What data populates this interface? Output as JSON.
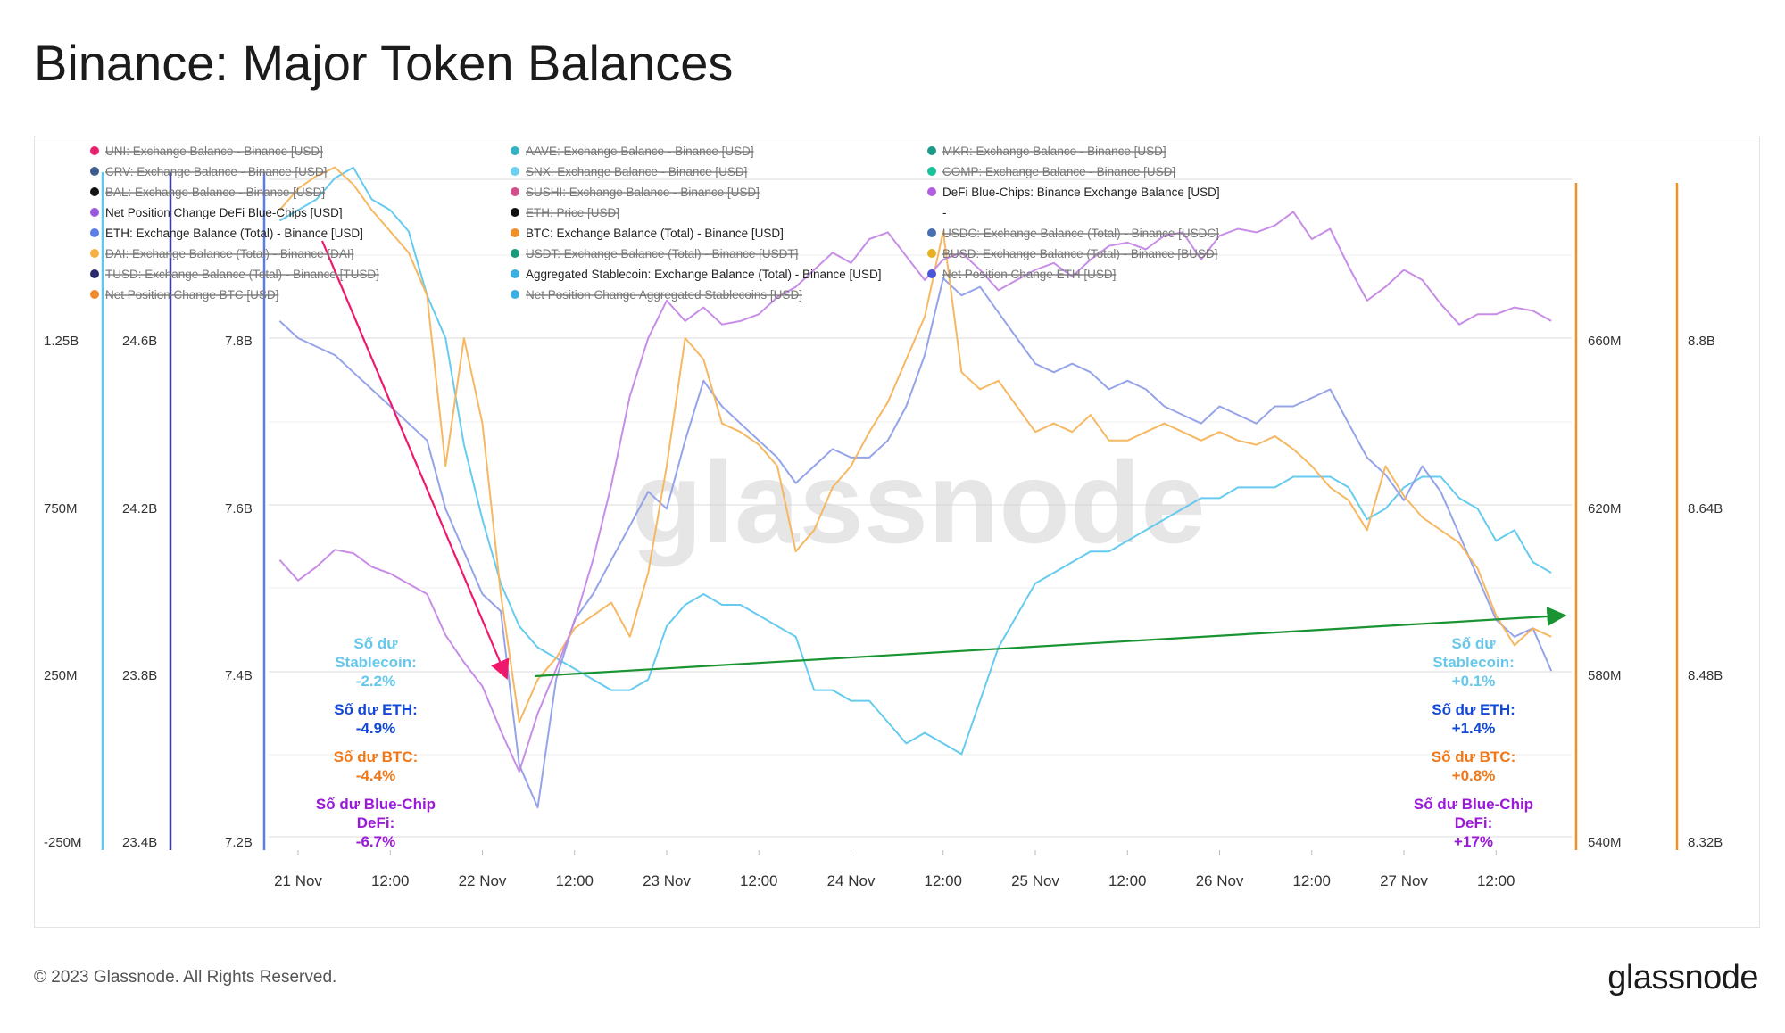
{
  "title": "Binance: Major Token Balances",
  "footer": "© 2023 Glassnode. All Rights Reserved.",
  "brand": "glassnode",
  "watermark": "glassnode",
  "colors": {
    "stable": "#5ec8ee",
    "eth": "#8f9fe8",
    "btc": "#f5b45a",
    "defi": "#c487e6",
    "red_arrow": "#f0186b",
    "green_arrow": "#1a9432",
    "ann_stable": "#67c8ec",
    "ann_eth": "#1248d8",
    "ann_btc": "#f07818",
    "ann_defi": "#9b1ad8"
  },
  "legend": [
    {
      "label": "UNI: Exchange Balance - Binance [USD]",
      "color": "#e8206e",
      "struck": true
    },
    {
      "label": "AAVE: Exchange Balance - Binance [USD]",
      "color": "#36b3c1",
      "struck": true
    },
    {
      "label": "MKR: Exchange Balance - Binance [USD]",
      "color": "#1c9a8a",
      "struck": true
    },
    {
      "label": "CRV: Exchange Balance - Binance [USD]",
      "color": "#3b5b8c",
      "struck": true
    },
    {
      "label": "SNX: Exchange Balance - Binance [USD]",
      "color": "#6ed0f0",
      "struck": true
    },
    {
      "label": "COMP: Exchange Balance - Binance [USD]",
      "color": "#19c39a",
      "struck": true
    },
    {
      "label": "BAL: Exchange Balance - Binance [USD]",
      "color": "#111111",
      "struck": true
    },
    {
      "label": "SUSHI: Exchange Balance - Binance [USD]",
      "color": "#d1508a",
      "struck": true
    },
    {
      "label": "DeFi Blue-Chips: Binance Exchange Balance [USD]",
      "color": "#b25ce0",
      "struck": false
    },
    {
      "label": "Net Position Change DeFi Blue-Chips [USD]",
      "color": "#9b59e0",
      "struck": false
    },
    {
      "label": "ETH: Price [USD]",
      "color": "#111111",
      "struck": true
    },
    {
      "label": "-",
      "color": "",
      "struck": false
    },
    {
      "label": "ETH: Exchange Balance (Total) - Binance [USD]",
      "color": "#5b7de8",
      "struck": false
    },
    {
      "label": "BTC: Exchange Balance (Total) - Binance [USD]",
      "color": "#f0902a",
      "struck": false
    },
    {
      "label": "USDC: Exchange Balance (Total) - Binance [USDC]",
      "color": "#4a6fb0",
      "struck": true
    },
    {
      "label": "DAI: Exchange Balance (Total) - Binance [DAI]",
      "color": "#f5b041",
      "struck": true
    },
    {
      "label": "USDT: Exchange Balance (Total) - Binance [USDT]",
      "color": "#1a9a7a",
      "struck": true
    },
    {
      "label": "BUSD: Exchange Balance (Total) - Binance [BUSD]",
      "color": "#e6b020",
      "struck": true
    },
    {
      "label": "TUSD: Exchange Balance (Total) - Binance [TUSD]",
      "color": "#2a2a6e",
      "struck": true
    },
    {
      "label": "Aggregated Stablecoin: Exchange Balance (Total) - Binance [USD]",
      "color": "#3bb0e0",
      "struck": false
    },
    {
      "label": "Net Position Change ETH [USD]",
      "color": "#4a55d8",
      "struck": true
    },
    {
      "label": "Net Position Change BTC [USD]",
      "color": "#f08a2a",
      "struck": true
    },
    {
      "label": "Net Position Change Aggregated Stablecoins [USD]",
      "color": "#3bb0e0",
      "struck": true
    }
  ],
  "annotations": {
    "left": [
      {
        "lines": [
          "Số dư",
          "Stablecoin:",
          "-2.2%"
        ],
        "key": "ann_stable"
      },
      {
        "lines": [
          "Số dư ETH:",
          "-4.9%"
        ],
        "key": "ann_eth"
      },
      {
        "lines": [
          "Số dư BTC:",
          "-4.4%"
        ],
        "key": "ann_btc"
      },
      {
        "lines": [
          "Số dư Blue-Chip",
          "DeFi:",
          "-6.7%"
        ],
        "key": "ann_defi"
      }
    ],
    "right": [
      {
        "lines": [
          "Số dư",
          "Stablecoin:",
          "+0.1%"
        ],
        "key": "ann_stable"
      },
      {
        "lines": [
          "Số dư ETH:",
          "+1.4%"
        ],
        "key": "ann_eth"
      },
      {
        "lines": [
          "Số dư BTC:",
          "+0.8%"
        ],
        "key": "ann_btc"
      },
      {
        "lines": [
          "Số dư Blue-Chip",
          "DeFi:",
          "+17%"
        ],
        "key": "ann_defi"
      }
    ]
  },
  "chart_data": {
    "type": "line",
    "title": "Binance: Major Token Balances",
    "x_ticks": [
      "21 Nov",
      "12:00",
      "22 Nov",
      "12:00",
      "23 Nov",
      "12:00",
      "24 Nov",
      "12:00",
      "25 Nov",
      "12:00",
      "26 Nov",
      "12:00",
      "27 Nov",
      "12:00"
    ],
    "x_range_days": [
      0,
      6.8
    ],
    "axes": {
      "defi": {
        "ticks": [
          "-250M",
          "250M",
          "750M",
          "1.25B"
        ],
        "range": [
          -250,
          1250
        ],
        "unit": "M USD"
      },
      "btc": {
        "ticks": [
          "23.4B",
          "23.8B",
          "24.2B",
          "24.6B"
        ],
        "range": [
          23.4,
          24.6
        ],
        "unit": "B USD"
      },
      "eth": {
        "ticks": [
          "7.2B",
          "7.4B",
          "7.6B",
          "7.8B"
        ],
        "range": [
          7.2,
          7.8
        ],
        "unit": "B USD"
      },
      "stable_r1": {
        "ticks": [
          "540M",
          "580M",
          "620M",
          "660M"
        ],
        "range": [
          540,
          660
        ],
        "unit": "M USD"
      },
      "stable_r2": {
        "ticks": [
          "8.32B",
          "8.48B",
          "8.64B",
          "8.8B"
        ],
        "range": [
          8.32,
          8.8
        ],
        "unit": "B USD"
      }
    },
    "series": [
      {
        "key": "stable",
        "axis": "stable_r2",
        "x": [
          -0.1,
          0.0,
          0.1,
          0.2,
          0.3,
          0.4,
          0.5,
          0.6,
          0.7,
          0.8,
          0.9,
          1.0,
          1.1,
          1.2,
          1.3,
          1.4,
          1.5,
          1.6,
          1.7,
          1.8,
          1.9,
          2.0,
          2.1,
          2.2,
          2.3,
          2.4,
          2.5,
          2.6,
          2.7,
          2.8,
          2.9,
          3.0,
          3.1,
          3.2,
          3.3,
          3.4,
          3.5,
          3.6,
          3.7,
          3.8,
          3.9,
          4.0,
          4.1,
          4.2,
          4.3,
          4.4,
          4.5,
          4.6,
          4.7,
          4.8,
          4.9,
          5.0,
          5.1,
          5.2,
          5.3,
          5.4,
          5.5,
          5.6,
          5.7,
          5.8,
          5.9,
          6.0,
          6.1,
          6.2,
          6.3,
          6.4,
          6.5,
          6.6,
          6.7,
          6.8
        ],
        "values": [
          8.91,
          8.92,
          8.93,
          8.95,
          8.96,
          8.93,
          8.92,
          8.9,
          8.84,
          8.8,
          8.7,
          8.63,
          8.57,
          8.53,
          8.51,
          8.5,
          8.49,
          8.48,
          8.47,
          8.47,
          8.48,
          8.53,
          8.55,
          8.56,
          8.55,
          8.55,
          8.54,
          8.53,
          8.52,
          8.47,
          8.47,
          8.46,
          8.46,
          8.44,
          8.42,
          8.43,
          8.42,
          8.41,
          8.46,
          8.51,
          8.54,
          8.57,
          8.58,
          8.59,
          8.6,
          8.6,
          8.61,
          8.62,
          8.63,
          8.64,
          8.65,
          8.65,
          8.66,
          8.66,
          8.66,
          8.67,
          8.67,
          8.67,
          8.66,
          8.63,
          8.64,
          8.66,
          8.67,
          8.67,
          8.65,
          8.64,
          8.61,
          8.62,
          8.59,
          8.58
        ]
      },
      {
        "key": "eth",
        "axis": "eth",
        "x": [
          -0.1,
          0.0,
          0.1,
          0.2,
          0.3,
          0.4,
          0.5,
          0.6,
          0.7,
          0.8,
          0.9,
          1.0,
          1.1,
          1.2,
          1.3,
          1.4,
          1.5,
          1.6,
          1.7,
          1.8,
          1.9,
          2.0,
          2.1,
          2.2,
          2.3,
          2.4,
          2.5,
          2.6,
          2.7,
          2.8,
          2.9,
          3.0,
          3.1,
          3.2,
          3.3,
          3.4,
          3.5,
          3.6,
          3.7,
          3.8,
          3.9,
          4.0,
          4.1,
          4.2,
          4.3,
          4.4,
          4.5,
          4.6,
          4.7,
          4.8,
          4.9,
          5.0,
          5.1,
          5.2,
          5.3,
          5.4,
          5.5,
          5.6,
          5.7,
          5.8,
          5.9,
          6.0,
          6.1,
          6.2,
          6.3,
          6.4,
          6.5,
          6.6,
          6.7,
          6.8
        ],
        "values": [
          7.82,
          7.8,
          7.79,
          7.78,
          7.76,
          7.74,
          7.72,
          7.7,
          7.68,
          7.6,
          7.55,
          7.5,
          7.48,
          7.3,
          7.25,
          7.4,
          7.47,
          7.5,
          7.54,
          7.58,
          7.62,
          7.6,
          7.68,
          7.75,
          7.72,
          7.7,
          7.68,
          7.66,
          7.63,
          7.65,
          7.67,
          7.66,
          7.66,
          7.68,
          7.72,
          7.78,
          7.87,
          7.85,
          7.86,
          7.83,
          7.8,
          7.77,
          7.76,
          7.77,
          7.76,
          7.74,
          7.75,
          7.74,
          7.72,
          7.71,
          7.7,
          7.72,
          7.71,
          7.7,
          7.72,
          7.72,
          7.73,
          7.74,
          7.7,
          7.66,
          7.64,
          7.61,
          7.65,
          7.62,
          7.57,
          7.52,
          7.47,
          7.45,
          7.46,
          7.41
        ]
      },
      {
        "key": "btc",
        "axis": "btc",
        "x": [
          -0.1,
          0.0,
          0.1,
          0.2,
          0.3,
          0.4,
          0.5,
          0.6,
          0.7,
          0.8,
          0.9,
          1.0,
          1.1,
          1.2,
          1.3,
          1.4,
          1.5,
          1.6,
          1.7,
          1.8,
          1.9,
          2.0,
          2.1,
          2.2,
          2.3,
          2.4,
          2.5,
          2.6,
          2.7,
          2.8,
          2.9,
          3.0,
          3.1,
          3.2,
          3.3,
          3.4,
          3.5,
          3.6,
          3.7,
          3.8,
          3.9,
          4.0,
          4.1,
          4.2,
          4.3,
          4.4,
          4.5,
          4.6,
          4.7,
          4.8,
          4.9,
          5.0,
          5.1,
          5.2,
          5.3,
          5.4,
          5.5,
          5.6,
          5.7,
          5.8,
          5.9,
          6.0,
          6.1,
          6.2,
          6.3,
          6.4,
          6.5,
          6.6,
          6.7,
          6.8
        ],
        "values": [
          24.9,
          24.95,
          24.98,
          25.0,
          24.96,
          24.9,
          24.85,
          24.8,
          24.7,
          24.3,
          24.6,
          24.4,
          24.0,
          23.7,
          23.8,
          23.85,
          23.92,
          23.95,
          23.98,
          23.9,
          24.05,
          24.3,
          24.6,
          24.55,
          24.4,
          24.38,
          24.35,
          24.3,
          24.1,
          24.15,
          24.25,
          24.3,
          24.38,
          24.45,
          24.55,
          24.65,
          24.85,
          24.52,
          24.48,
          24.5,
          24.44,
          24.38,
          24.4,
          24.38,
          24.42,
          24.36,
          24.36,
          24.38,
          24.4,
          24.38,
          24.36,
          24.38,
          24.36,
          24.35,
          24.37,
          24.34,
          24.3,
          24.25,
          24.22,
          24.15,
          24.3,
          24.23,
          24.18,
          24.15,
          24.12,
          24.06,
          23.95,
          23.88,
          23.92,
          23.9
        ]
      },
      {
        "key": "defi",
        "axis": "defi",
        "x": [
          -0.1,
          0.0,
          0.1,
          0.2,
          0.3,
          0.4,
          0.5,
          0.6,
          0.7,
          0.8,
          0.9,
          1.0,
          1.1,
          1.2,
          1.3,
          1.4,
          1.5,
          1.6,
          1.7,
          1.8,
          1.9,
          2.0,
          2.1,
          2.2,
          2.3,
          2.4,
          2.5,
          2.6,
          2.7,
          2.8,
          2.9,
          3.0,
          3.1,
          3.2,
          3.3,
          3.4,
          3.5,
          3.6,
          3.7,
          3.8,
          3.9,
          4.0,
          4.1,
          4.2,
          4.3,
          4.4,
          4.5,
          4.6,
          4.7,
          4.8,
          4.9,
          5.0,
          5.1,
          5.2,
          5.3,
          5.4,
          5.5,
          5.6,
          5.7,
          5.8,
          5.9,
          6.0,
          6.1,
          6.2,
          6.3,
          6.4,
          6.5,
          6.6,
          6.7,
          6.8
        ],
        "values": [
          600,
          540,
          580,
          630,
          620,
          580,
          560,
          530,
          500,
          380,
          300,
          230,
          100,
          -20,
          150,
          280,
          420,
          600,
          820,
          1080,
          1250,
          1360,
          1300,
          1340,
          1290,
          1300,
          1320,
          1370,
          1400,
          1450,
          1500,
          1470,
          1540,
          1560,
          1490,
          1420,
          1480,
          1500,
          1450,
          1390,
          1420,
          1450,
          1470,
          1430,
          1480,
          1520,
          1530,
          1510,
          1550,
          1560,
          1480,
          1550,
          1570,
          1560,
          1580,
          1620,
          1540,
          1570,
          1460,
          1360,
          1400,
          1450,
          1420,
          1350,
          1290,
          1320,
          1320,
          1340,
          1330,
          1300
        ]
      }
    ]
  }
}
